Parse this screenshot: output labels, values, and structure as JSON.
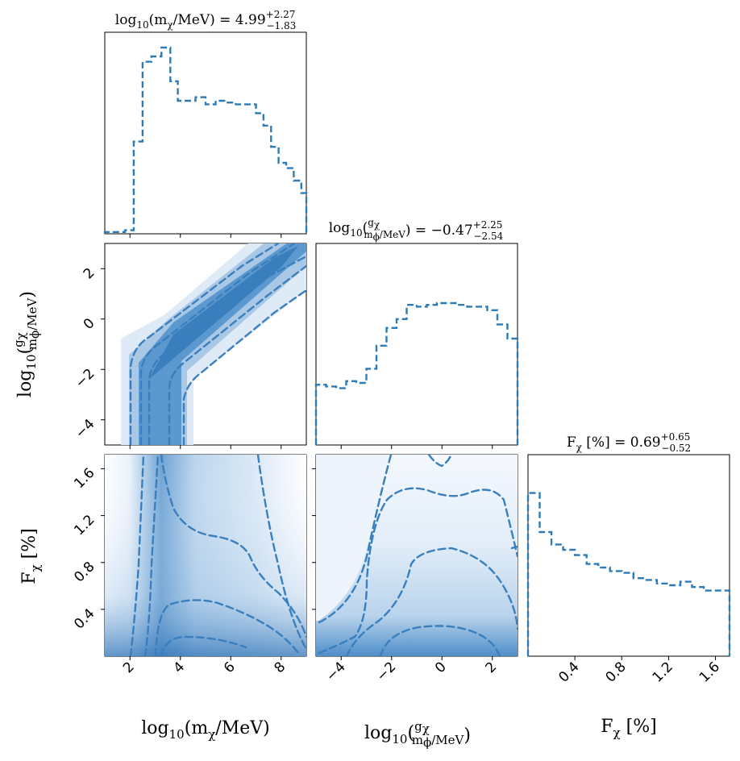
{
  "chart_data": {
    "type": "corner",
    "color": "#3a7fbd",
    "parameters": [
      {
        "name": "log10_mchi",
        "range": [
          1,
          9
        ],
        "ticks": [
          "2",
          "4",
          "6",
          "8"
        ],
        "tick_values": [
          2,
          4,
          6,
          8
        ],
        "label_main": "log",
        "label_sub": "10",
        "label_rest": "(m",
        "label_chi": "χ",
        "label_end": "/MeV)"
      },
      {
        "name": "log10_gchi_over_mphi",
        "range": [
          -5,
          3
        ],
        "ticks": [
          "−4",
          "−2",
          "0",
          "2"
        ],
        "tick_values": [
          -4,
          -2,
          0,
          2
        ],
        "label_main": "log",
        "label_sub": "10",
        "label_frac_num": "g",
        "label_frac_num_sub": "χ",
        "label_frac_den": "m",
        "label_frac_den_sub": "ϕ",
        "label_frac_den_rest": "/MeV"
      },
      {
        "name": "F_chi",
        "range": [
          0,
          1.72
        ],
        "ticks": [
          "0.4",
          "0.8",
          "1.2",
          "1.6"
        ],
        "tick_values": [
          0.4,
          0.8,
          1.2,
          1.6
        ],
        "label_main": "F",
        "label_sub": "χ",
        "label_rest": " [%]"
      }
    ],
    "titles": [
      {
        "prefix": "log",
        "sub10": "10",
        "body": "(m",
        "chi": "χ",
        "tail": "/MeV) = 4.99",
        "plus": "+2.27",
        "minus": "−1.83"
      },
      {
        "prefix": "log",
        "sub10": "10",
        "frac_num": "g",
        "frac_num_sub": "χ",
        "frac_den": "m",
        "frac_den_sub": "ϕ",
        "frac_den_tail": "/MeV",
        "tail": ") = −0.47",
        "plus": "+2.25",
        "minus": "−2.54"
      },
      {
        "prefix": "F",
        "chi": "χ",
        "tail": " [%] = 0.69",
        "plus": "+0.65",
        "minus": "−0.52"
      }
    ],
    "histograms": [
      {
        "param": 0,
        "edges": [
          1.0,
          1.4,
          1.8,
          2.15,
          2.5,
          2.85,
          3.25,
          3.6,
          3.9,
          4.25,
          4.6,
          5.0,
          5.4,
          5.8,
          6.2,
          6.6,
          7.0,
          7.3,
          7.6,
          7.9,
          8.2,
          8.5,
          8.8,
          9.0
        ],
        "counts": [
          0.01,
          0.01,
          0.02,
          0.52,
          0.97,
          1.0,
          1.05,
          0.86,
          0.75,
          0.75,
          0.77,
          0.73,
          0.75,
          0.74,
          0.73,
          0.73,
          0.68,
          0.61,
          0.49,
          0.4,
          0.37,
          0.3,
          0.23
        ]
      },
      {
        "param": 1,
        "edges": [
          -5,
          -4.6,
          -4.2,
          -3.8,
          -3.4,
          -3.0,
          -2.6,
          -2.2,
          -1.8,
          -1.4,
          -1.0,
          -0.6,
          -0.2,
          0.2,
          0.6,
          1.0,
          1.4,
          1.8,
          2.2,
          2.6,
          3.0
        ],
        "counts": [
          0.34,
          0.33,
          0.32,
          0.36,
          0.35,
          0.43,
          0.56,
          0.66,
          0.71,
          0.79,
          0.78,
          0.79,
          0.8,
          0.8,
          0.79,
          0.78,
          0.78,
          0.76,
          0.68,
          0.6
        ]
      },
      {
        "param": 2,
        "edges": [
          0,
          0.1,
          0.2,
          0.3,
          0.4,
          0.5,
          0.6,
          0.7,
          0.8,
          0.9,
          1.0,
          1.1,
          1.2,
          1.3,
          1.4,
          1.5,
          1.6,
          1.72
        ],
        "counts": [
          0.92,
          0.7,
          0.63,
          0.6,
          0.57,
          0.52,
          0.5,
          0.48,
          0.47,
          0.44,
          0.43,
          0.41,
          0.4,
          0.42,
          0.39,
          0.37,
          0.37
        ]
      }
    ]
  }
}
